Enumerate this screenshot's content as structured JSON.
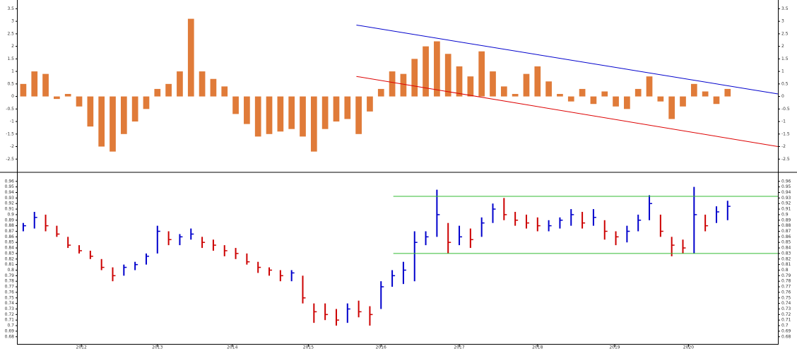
{
  "chart_data": [
    {
      "type": "histogram_oscillator",
      "color": "#e07b39",
      "xlim": [
        -0.5,
        67.5
      ],
      "ylim": [
        -3,
        3.85
      ],
      "yticks": [
        -2.5,
        -2,
        -1.5,
        -1,
        -0.5,
        0,
        0.5,
        1,
        1.5,
        2,
        2.5,
        3,
        3.5
      ],
      "values": [
        0.5,
        1.0,
        0.9,
        -0.1,
        0.1,
        -0.4,
        -1.2,
        -2.0,
        -2.2,
        -1.5,
        -1.0,
        -0.5,
        0.3,
        0.5,
        1.0,
        3.1,
        1.0,
        0.7,
        0.4,
        -0.7,
        -1.1,
        -1.6,
        -1.5,
        -1.4,
        -1.3,
        -1.6,
        -2.2,
        -1.3,
        -1.0,
        -0.9,
        -1.5,
        -0.6,
        0.3,
        1.0,
        0.9,
        1.5,
        2.0,
        2.2,
        1.7,
        1.2,
        0.8,
        1.8,
        1.0,
        0.4,
        0.1,
        0.9,
        1.2,
        0.6,
        0.1,
        -0.2,
        0.3,
        -0.3,
        0.2,
        -0.4,
        -0.5,
        0.3,
        0.8,
        -0.2,
        -0.9,
        -0.4,
        0.5,
        0.2,
        -0.3,
        0.3
      ],
      "trend_lines": [
        {
          "color": "#0000cc",
          "x": [
            29.8,
            67.5
          ],
          "y": [
            2.85,
            0.1
          ]
        },
        {
          "color": "#dd0000",
          "x": [
            29.8,
            67.5
          ],
          "y": [
            0.8,
            -2.0
          ]
        }
      ]
    },
    {
      "type": "price_bars",
      "up_color": "#0000cc",
      "down_color": "#cc0000",
      "xlim": [
        -0.5,
        67.5
      ],
      "ylim": [
        0.667,
        0.975
      ],
      "yticks": [
        0.68,
        0.69,
        0.7,
        0.71,
        0.72,
        0.73,
        0.74,
        0.75,
        0.76,
        0.77,
        0.78,
        0.79,
        0.8,
        0.81,
        0.82,
        0.83,
        0.84,
        0.85,
        0.86,
        0.87,
        0.88,
        0.89,
        0.9,
        0.91,
        0.92,
        0.93,
        0.94,
        0.95,
        0.96
      ],
      "xticks": [
        {
          "value": 5.2,
          "label": "2012"
        },
        {
          "value": 12.0,
          "label": "2013"
        },
        {
          "value": 18.7,
          "label": "2014"
        },
        {
          "value": 25.5,
          "label": "2015"
        },
        {
          "value": 32.0,
          "label": "2016"
        },
        {
          "value": 39.0,
          "label": "2017"
        },
        {
          "value": 46.0,
          "label": "2018"
        },
        {
          "value": 52.9,
          "label": "2019"
        },
        {
          "value": 59.5,
          "label": "2020"
        }
      ],
      "high": [
        0.885,
        0.905,
        0.9,
        0.88,
        0.86,
        0.845,
        0.835,
        0.82,
        0.805,
        0.81,
        0.815,
        0.83,
        0.88,
        0.87,
        0.865,
        0.875,
        0.86,
        0.855,
        0.845,
        0.84,
        0.83,
        0.815,
        0.805,
        0.8,
        0.8,
        0.79,
        0.74,
        0.74,
        0.73,
        0.74,
        0.745,
        0.735,
        0.78,
        0.8,
        0.815,
        0.87,
        0.87,
        0.945,
        0.885,
        0.88,
        0.875,
        0.895,
        0.92,
        0.93,
        0.905,
        0.9,
        0.895,
        0.89,
        0.895,
        0.91,
        0.905,
        0.91,
        0.89,
        0.87,
        0.88,
        0.9,
        0.935,
        0.9,
        0.86,
        0.855,
        0.95,
        0.9,
        0.915,
        0.925
      ],
      "low": [
        0.87,
        0.875,
        0.87,
        0.86,
        0.84,
        0.83,
        0.82,
        0.8,
        0.78,
        0.79,
        0.8,
        0.81,
        0.83,
        0.845,
        0.845,
        0.855,
        0.84,
        0.835,
        0.825,
        0.82,
        0.81,
        0.795,
        0.79,
        0.78,
        0.78,
        0.74,
        0.705,
        0.71,
        0.7,
        0.705,
        0.715,
        0.7,
        0.73,
        0.77,
        0.775,
        0.78,
        0.845,
        0.86,
        0.83,
        0.845,
        0.84,
        0.86,
        0.885,
        0.89,
        0.88,
        0.875,
        0.87,
        0.87,
        0.875,
        0.88,
        0.875,
        0.88,
        0.855,
        0.845,
        0.85,
        0.87,
        0.89,
        0.86,
        0.825,
        0.83,
        0.83,
        0.87,
        0.885,
        0.89
      ],
      "close": [
        0.88,
        0.895,
        0.88,
        0.865,
        0.845,
        0.835,
        0.825,
        0.805,
        0.79,
        0.805,
        0.81,
        0.825,
        0.87,
        0.855,
        0.86,
        0.865,
        0.85,
        0.845,
        0.835,
        0.83,
        0.815,
        0.805,
        0.8,
        0.79,
        0.795,
        0.75,
        0.725,
        0.72,
        0.71,
        0.73,
        0.725,
        0.72,
        0.77,
        0.79,
        0.8,
        0.85,
        0.86,
        0.9,
        0.85,
        0.86,
        0.855,
        0.885,
        0.91,
        0.9,
        0.89,
        0.885,
        0.88,
        0.88,
        0.89,
        0.9,
        0.885,
        0.895,
        0.87,
        0.86,
        0.87,
        0.89,
        0.92,
        0.87,
        0.845,
        0.84,
        0.9,
        0.88,
        0.905,
        0.915
      ],
      "trend_lines": [
        {
          "color": "#33bb33",
          "x": [
            33.1,
            67.5
          ],
          "y": [
            0.933,
            0.933
          ]
        },
        {
          "color": "#33bb33",
          "x": [
            33.1,
            67.5
          ],
          "y": [
            0.83,
            0.83
          ]
        }
      ]
    }
  ]
}
